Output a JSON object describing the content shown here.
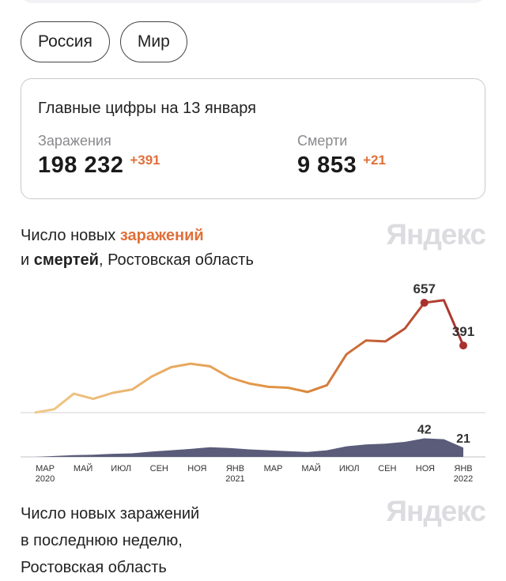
{
  "region_tabs": [
    "Россия",
    "Мир"
  ],
  "stats": {
    "title": "Главные цифры на 13 января",
    "infections": {
      "label": "Заражения",
      "value": "198 232",
      "delta": "+391"
    },
    "deaths": {
      "label": "Смерти",
      "value": "9 853",
      "delta": "+21"
    }
  },
  "chart_section": {
    "title_pre": "Число новых ",
    "title_hl1": "заражений",
    "title_mid": "и ",
    "title_hl2": "смертей",
    "title_post": ", Ростовская область",
    "watermark": "Яндекс"
  },
  "section2": {
    "lines": [
      "Число новых заражений",
      "в последнюю неделю,",
      "Ростовская область"
    ],
    "watermark": "Яндекс"
  },
  "colors": {
    "accent": "#e0703a",
    "deaths_fill": "#5a5c7a",
    "peak": "#a8302f"
  },
  "chart_data": [
    {
      "type": "line",
      "series_colors": [
        "#f0c98a",
        "#e0903f",
        "#a8302f"
      ],
      "x": [
        "2020-03",
        "2020-04",
        "2020-05",
        "2020-06",
        "2020-07",
        "2020-08",
        "2020-09",
        "2020-10",
        "2020-11",
        "2020-12",
        "2021-01",
        "2021-02",
        "2021-03",
        "2021-04",
        "2021-05",
        "2021-06",
        "2021-07",
        "2021-08",
        "2021-09",
        "2021-10",
        "2021-11",
        "2021-12",
        "2022-01"
      ],
      "series": [
        {
          "values": [
            0,
            20,
            110,
            80,
            115,
            135,
            210,
            265,
            285,
            270,
            205,
            170,
            150,
            145,
            120,
            160,
            340,
            420,
            415,
            490,
            640,
            655,
            391
          ]
        }
      ],
      "annotations": [
        {
          "label": "657",
          "x": "2021-11"
        },
        {
          "label": "391",
          "x": "2022-01"
        }
      ],
      "ylim": [
        0,
        700
      ]
    },
    {
      "type": "area",
      "x": [
        "2020-03",
        "2020-04",
        "2020-05",
        "2020-06",
        "2020-07",
        "2020-08",
        "2020-09",
        "2020-10",
        "2020-11",
        "2020-12",
        "2021-01",
        "2021-02",
        "2021-03",
        "2021-04",
        "2021-05",
        "2021-06",
        "2021-07",
        "2021-08",
        "2021-09",
        "2021-10",
        "2021-11",
        "2021-12",
        "2022-01"
      ],
      "series": [
        {
          "values": [
            0,
            2,
            4,
            5,
            7,
            8,
            12,
            15,
            18,
            22,
            20,
            17,
            15,
            13,
            11,
            15,
            24,
            28,
            30,
            34,
            42,
            40,
            21
          ]
        }
      ],
      "annotations": [
        {
          "label": "42",
          "x": "2021-11"
        },
        {
          "label": "21",
          "x": "2022-01"
        }
      ],
      "ylim": [
        0,
        50
      ],
      "x_tick_labels": [
        {
          "month": "МАР",
          "year": "2020"
        },
        {
          "month": "МАЙ",
          "year": ""
        },
        {
          "month": "ИЮЛ",
          "year": ""
        },
        {
          "month": "СЕН",
          "year": ""
        },
        {
          "month": "НОЯ",
          "year": ""
        },
        {
          "month": "ЯНВ",
          "year": "2021"
        },
        {
          "month": "МАР",
          "year": ""
        },
        {
          "month": "МАЙ",
          "year": ""
        },
        {
          "month": "ИЮЛ",
          "year": ""
        },
        {
          "month": "СЕН",
          "year": ""
        },
        {
          "month": "НОЯ",
          "year": ""
        },
        {
          "month": "ЯНВ",
          "year": "2022"
        }
      ]
    }
  ]
}
